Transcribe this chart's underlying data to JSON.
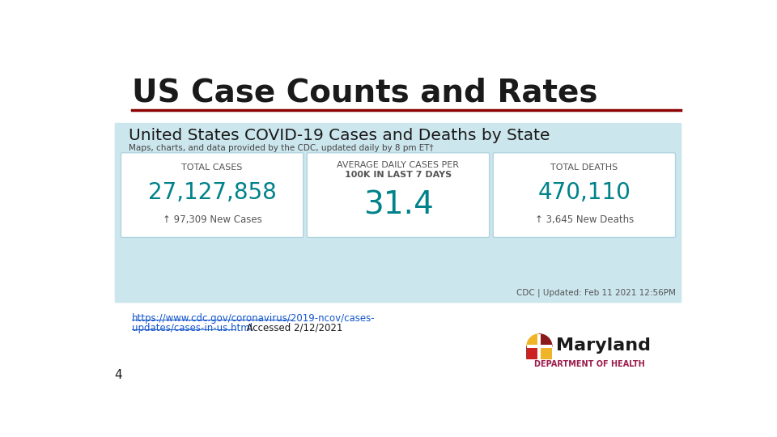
{
  "title": "US Case Counts and Rates",
  "title_color": "#1a1a1a",
  "title_fontsize": 28,
  "separator_color": "#8B0000",
  "bg_color": "#ffffff",
  "cdc_header": "United States COVID-19 Cases and Deaths by State",
  "cdc_subheader": "Maps, charts, and data provided by the CDC, updated daily by 8 pm ET†",
  "cdc_bg": "#cce6ed",
  "card_bg": "#ffffff",
  "card_border": "#b0d4de",
  "teal_color": "#00828a",
  "card1_label": "TOTAL CASES",
  "card1_value": "27,127,858",
  "card1_sub": "↑ 97,309 New Cases",
  "card2_label": "AVERAGE DAILY CASES PER",
  "card2_label2": "100K IN LAST 7 DAYS",
  "card2_value": "31.4",
  "card3_label": "TOTAL DEATHS",
  "card3_value": "470,110",
  "card3_sub": "↑ 3,645 New Deaths",
  "cdc_footer": "CDC | Updated: Feb 11 2021 12:56PM",
  "source_url_line1": "https://www.cdc.gov/coronavirus/2019-ncov/cases-",
  "source_url_line2": "updates/cases-in-us.html",
  "source_accessed": "  Accessed 2/12/2021",
  "slide_number": "4",
  "md_label": "Maryland",
  "md_sub": "DEPARTMENT OF HEALTH",
  "md_label_color": "#1a1a1a",
  "md_sub_color": "#9b1b4b"
}
